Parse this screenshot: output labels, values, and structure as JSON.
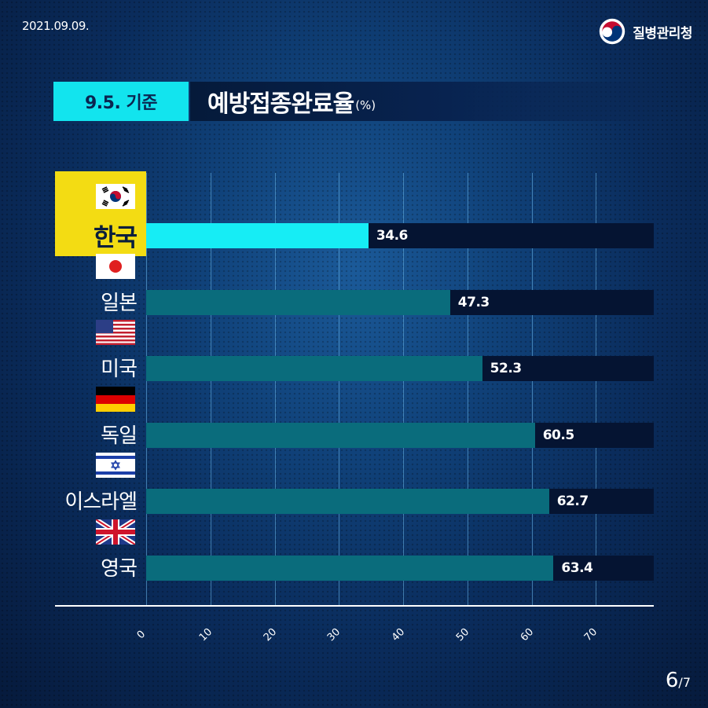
{
  "header": {
    "date": "2021.09.09.",
    "org_name": "질병관리청"
  },
  "title": {
    "date_tag": "9.5. 기준",
    "main": "예방접종완료율",
    "unit": "(%)"
  },
  "chart_data": {
    "type": "bar",
    "orientation": "horizontal",
    "title": "예방접종완료율(%)",
    "categories": [
      "한국",
      "일본",
      "미국",
      "독일",
      "이스라엘",
      "영국"
    ],
    "values": [
      34.6,
      47.3,
      52.3,
      60.5,
      62.7,
      63.4
    ],
    "value_labels": [
      "34.6",
      "47.3",
      "52.3",
      "60.5",
      "62.7",
      "63.4"
    ],
    "xlim": [
      0,
      79
    ],
    "xticks": [
      "0",
      "10",
      "20",
      "30",
      "40",
      "50",
      "60",
      "70"
    ],
    "grid": true,
    "highlight_category": "한국",
    "colors": {
      "highlight": "#16edf5",
      "default": "#0a6c7c",
      "track": "#051432",
      "highlight_label_bg": "#f3dc13"
    }
  },
  "flags": [
    "korea-flag-icon",
    "japan-flag-icon",
    "usa-flag-icon",
    "germany-flag-icon",
    "israel-flag-icon",
    "uk-flag-icon"
  ],
  "pagination": {
    "current": "6",
    "separator": "/",
    "total": "7"
  }
}
